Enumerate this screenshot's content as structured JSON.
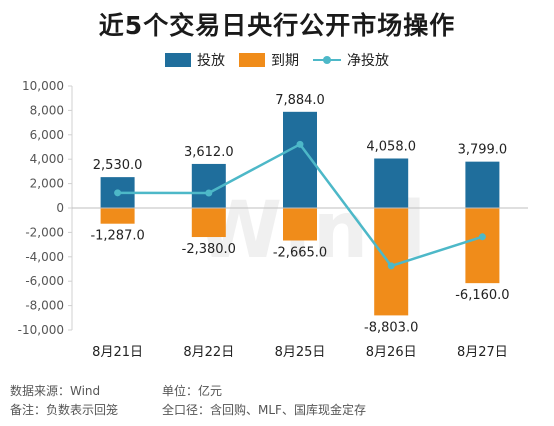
{
  "title": "近5个交易日央行公开市场操作",
  "legend": {
    "invest": "投放",
    "mature": "到期",
    "net": "净投放"
  },
  "colors": {
    "invest": "#1f6e9c",
    "mature": "#f08c1a",
    "net": "#4db8c8"
  },
  "footer": {
    "source": "数据来源：Wind",
    "unit": "单位：亿元",
    "note": "备注：负数表示回笼",
    "scope": "全口径：含回购、MLF、国库现金定存"
  },
  "watermark": "Wind",
  "chart_data": {
    "type": "bar",
    "categories": [
      "8月21日",
      "8月22日",
      "8月25日",
      "8月26日",
      "8月27日"
    ],
    "series": [
      {
        "name": "投放",
        "values": [
          2530.0,
          3612.0,
          7884.0,
          4058.0,
          3799.0
        ],
        "labels": [
          "2,530.0",
          "3,612.0",
          "7,884.0",
          "4,058.0",
          "3,799.0"
        ]
      },
      {
        "name": "到期",
        "values": [
          -1287.0,
          -2380.0,
          -2665.0,
          -8803.0,
          -6160.0
        ],
        "labels": [
          "-1,287.0",
          "-2,380.0",
          "-2,665.0",
          "-8,803.0",
          "-6,160.0"
        ]
      },
      {
        "name": "净投放",
        "type": "line",
        "values": [
          1243.0,
          1232.0,
          5219.0,
          -4745.0,
          -2361.0
        ]
      }
    ],
    "ylim": [
      -10000,
      10000
    ],
    "yticks": [
      10000,
      8000,
      6000,
      4000,
      2000,
      0,
      -2000,
      -4000,
      -6000,
      -8000,
      -10000
    ],
    "ytick_labels": [
      "10,000",
      "8,000",
      "6,000",
      "4,000",
      "2,000",
      "0",
      "-2,000",
      "-4,000",
      "-6,000",
      "-8,000",
      "-10,000"
    ],
    "legend_position": "top-center",
    "grid": false
  }
}
